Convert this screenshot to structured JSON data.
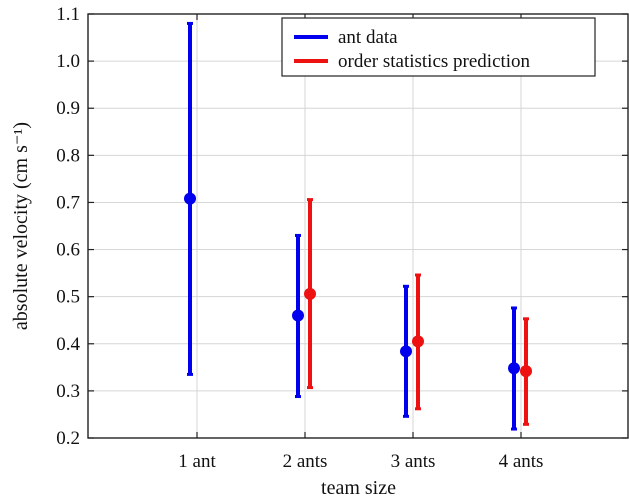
{
  "chart_data": {
    "type": "errorbar",
    "title": "",
    "xlabel": "team size",
    "ylabel": "absolute velocity (cm s⁻¹)",
    "ylim": [
      0.2,
      1.1
    ],
    "yticks": [
      "0.2",
      "0.3",
      "0.4",
      "0.5",
      "0.6",
      "0.7",
      "0.8",
      "0.9",
      "1.0",
      "1.1"
    ],
    "categories": [
      "1 ant",
      "2 ants",
      "3 ants",
      "4 ants"
    ],
    "grid": true,
    "legend_position": "top-right",
    "series": [
      {
        "name": "ant data",
        "color": "#0000ee",
        "points": [
          {
            "category": "1 ant",
            "mean": 0.708,
            "low": 0.335,
            "high": 1.08
          },
          {
            "category": "2 ants",
            "mean": 0.46,
            "low": 0.288,
            "high": 0.63
          },
          {
            "category": "3 ants",
            "mean": 0.384,
            "low": 0.246,
            "high": 0.522
          },
          {
            "category": "4 ants",
            "mean": 0.348,
            "low": 0.219,
            "high": 0.476
          }
        ]
      },
      {
        "name": "order statistics prediction",
        "color": "#ee1111",
        "points": [
          {
            "category": "2 ants",
            "mean": 0.506,
            "low": 0.307,
            "high": 0.706
          },
          {
            "category": "3 ants",
            "mean": 0.405,
            "low": 0.262,
            "high": 0.546
          },
          {
            "category": "4 ants",
            "mean": 0.342,
            "low": 0.229,
            "high": 0.453
          }
        ]
      }
    ]
  }
}
